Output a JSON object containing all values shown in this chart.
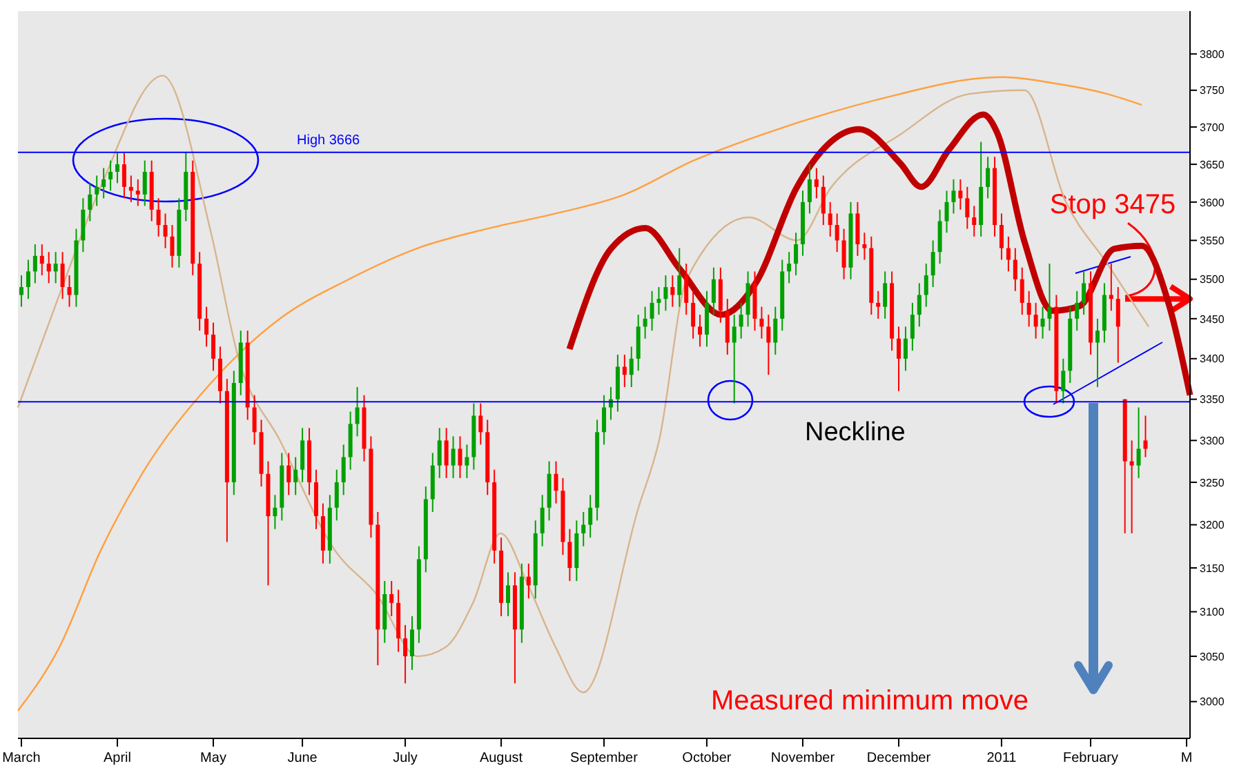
{
  "chart_data": {
    "type": "candlestick",
    "categories": [
      "March",
      null,
      null,
      null,
      null,
      null,
      null,
      null,
      null,
      null,
      null,
      null,
      null,
      null,
      "April",
      null,
      null,
      null,
      null,
      null,
      null,
      null,
      null,
      null,
      null,
      null,
      null,
      null,
      "May",
      null,
      null,
      null,
      null,
      null,
      null,
      null,
      null,
      null,
      null,
      null,
      null,
      "June",
      null,
      null,
      null,
      null,
      null,
      null,
      null,
      null,
      null,
      null,
      null,
      null,
      null,
      null,
      "July",
      null,
      null,
      null,
      null,
      null,
      null,
      null,
      null,
      null,
      null,
      null,
      null,
      null,
      "August",
      null,
      null,
      null,
      null,
      null,
      null,
      null,
      null,
      null,
      null,
      null,
      null,
      null,
      null,
      "September",
      null,
      null,
      null,
      null,
      null,
      null,
      null,
      null,
      null,
      null,
      null,
      null,
      null,
      null,
      "October",
      null,
      null,
      null,
      null,
      null,
      null,
      null,
      null,
      null,
      null,
      null,
      null,
      null,
      "November",
      null,
      null,
      null,
      null,
      null,
      null,
      null,
      null,
      null,
      null,
      null,
      null,
      null,
      "December",
      null,
      null,
      null,
      null,
      null,
      null,
      null,
      null,
      null,
      null,
      null,
      null,
      null,
      null,
      "2011",
      null,
      null,
      null,
      null,
      null,
      null,
      null,
      null,
      null,
      null,
      null,
      null,
      "February",
      null,
      null,
      null,
      null,
      null,
      null,
      null,
      null,
      null,
      null,
      null,
      null,
      null,
      "M"
    ],
    "ohlc": [
      [
        3480,
        3505,
        3465,
        3490
      ],
      [
        3490,
        3525,
        3475,
        3510
      ],
      [
        3510,
        3545,
        3495,
        3530
      ],
      [
        3530,
        3545,
        3505,
        3520
      ],
      [
        3520,
        3535,
        3495,
        3510
      ],
      [
        3510,
        3535,
        3495,
        3520
      ],
      [
        3520,
        3535,
        3475,
        3490
      ],
      [
        3490,
        3505,
        3465,
        3480
      ],
      [
        3480,
        3565,
        3465,
        3550
      ],
      [
        3550,
        3605,
        3535,
        3590
      ],
      [
        3590,
        3625,
        3575,
        3610
      ],
      [
        3610,
        3635,
        3595,
        3620
      ],
      [
        3620,
        3645,
        3605,
        3630
      ],
      [
        3630,
        3655,
        3615,
        3640
      ],
      [
        3640,
        3665,
        3625,
        3650
      ],
      [
        3650,
        3665,
        3605,
        3620
      ],
      [
        3620,
        3635,
        3600,
        3615
      ],
      [
        3615,
        3630,
        3595,
        3610
      ],
      [
        3610,
        3655,
        3595,
        3640
      ],
      [
        3640,
        3655,
        3575,
        3590
      ],
      [
        3590,
        3605,
        3555,
        3570
      ],
      [
        3570,
        3585,
        3540,
        3555
      ],
      [
        3555,
        3570,
        3515,
        3530
      ],
      [
        3530,
        3605,
        3515,
        3590
      ],
      [
        3590,
        3666,
        3575,
        3640
      ],
      [
        3640,
        3655,
        3505,
        3520
      ],
      [
        3520,
        3535,
        3435,
        3450
      ],
      [
        3450,
        3465,
        3415,
        3430
      ],
      [
        3430,
        3445,
        3385,
        3400
      ],
      [
        3400,
        3415,
        3345,
        3360
      ],
      [
        3360,
        3375,
        3180,
        3250
      ],
      [
        3250,
        3385,
        3235,
        3370
      ],
      [
        3370,
        3435,
        3355,
        3420
      ],
      [
        3420,
        3435,
        3325,
        3340
      ],
      [
        3340,
        3355,
        3295,
        3310
      ],
      [
        3310,
        3325,
        3245,
        3260
      ],
      [
        3260,
        3275,
        3130,
        3210
      ],
      [
        3210,
        3235,
        3195,
        3220
      ],
      [
        3220,
        3285,
        3205,
        3270
      ],
      [
        3270,
        3285,
        3235,
        3250
      ],
      [
        3250,
        3280,
        3235,
        3265
      ],
      [
        3265,
        3315,
        3250,
        3300
      ],
      [
        3300,
        3315,
        3235,
        3250
      ],
      [
        3250,
        3265,
        3195,
        3210
      ],
      [
        3210,
        3225,
        3155,
        3170
      ],
      [
        3170,
        3235,
        3155,
        3220
      ],
      [
        3220,
        3265,
        3205,
        3250
      ],
      [
        3250,
        3295,
        3235,
        3280
      ],
      [
        3280,
        3335,
        3265,
        3320
      ],
      [
        3320,
        3365,
        3305,
        3340
      ],
      [
        3340,
        3355,
        3275,
        3290
      ],
      [
        3290,
        3305,
        3185,
        3200
      ],
      [
        3200,
        3215,
        3040,
        3080
      ],
      [
        3080,
        3135,
        3065,
        3120
      ],
      [
        3120,
        3135,
        3095,
        3110
      ],
      [
        3110,
        3125,
        3055,
        3070
      ],
      [
        3070,
        3085,
        3020,
        3050
      ],
      [
        3050,
        3095,
        3035,
        3080
      ],
      [
        3080,
        3175,
        3065,
        3160
      ],
      [
        3160,
        3245,
        3145,
        3230
      ],
      [
        3230,
        3285,
        3215,
        3270
      ],
      [
        3270,
        3315,
        3255,
        3300
      ],
      [
        3300,
        3315,
        3255,
        3270
      ],
      [
        3270,
        3305,
        3255,
        3290
      ],
      [
        3290,
        3305,
        3255,
        3270
      ],
      [
        3270,
        3295,
        3255,
        3280
      ],
      [
        3280,
        3345,
        3265,
        3330
      ],
      [
        3330,
        3345,
        3295,
        3310
      ],
      [
        3310,
        3325,
        3235,
        3250
      ],
      [
        3250,
        3265,
        3155,
        3170
      ],
      [
        3170,
        3185,
        3095,
        3110
      ],
      [
        3110,
        3145,
        3095,
        3130
      ],
      [
        3130,
        3145,
        3020,
        3080
      ],
      [
        3080,
        3155,
        3065,
        3140
      ],
      [
        3140,
        3155,
        3115,
        3130
      ],
      [
        3130,
        3205,
        3115,
        3190
      ],
      [
        3190,
        3235,
        3175,
        3220
      ],
      [
        3220,
        3275,
        3205,
        3260
      ],
      [
        3260,
        3275,
        3225,
        3240
      ],
      [
        3240,
        3255,
        3165,
        3180
      ],
      [
        3180,
        3195,
        3135,
        3150
      ],
      [
        3150,
        3205,
        3135,
        3190
      ],
      [
        3190,
        3215,
        3175,
        3200
      ],
      [
        3200,
        3235,
        3185,
        3220
      ],
      [
        3220,
        3325,
        3205,
        3310
      ],
      [
        3310,
        3355,
        3295,
        3340
      ],
      [
        3340,
        3365,
        3325,
        3350
      ],
      [
        3350,
        3405,
        3335,
        3390
      ],
      [
        3390,
        3405,
        3365,
        3380
      ],
      [
        3380,
        3415,
        3365,
        3400
      ],
      [
        3400,
        3455,
        3385,
        3440
      ],
      [
        3440,
        3465,
        3425,
        3450
      ],
      [
        3450,
        3485,
        3435,
        3470
      ],
      [
        3470,
        3490,
        3455,
        3475
      ],
      [
        3475,
        3505,
        3460,
        3490
      ],
      [
        3490,
        3505,
        3465,
        3480
      ],
      [
        3480,
        3540,
        3465,
        3505
      ],
      [
        3505,
        3520,
        3455,
        3470
      ],
      [
        3470,
        3485,
        3425,
        3440
      ],
      [
        3440,
        3455,
        3415,
        3430
      ],
      [
        3430,
        3485,
        3415,
        3470
      ],
      [
        3470,
        3515,
        3455,
        3500
      ],
      [
        3500,
        3515,
        3445,
        3460
      ],
      [
        3460,
        3475,
        3405,
        3420
      ],
      [
        3420,
        3455,
        3345,
        3440
      ],
      [
        3440,
        3470,
        3425,
        3455
      ],
      [
        3455,
        3510,
        3440,
        3495
      ],
      [
        3495,
        3510,
        3435,
        3450
      ],
      [
        3450,
        3465,
        3425,
        3440
      ],
      [
        3440,
        3455,
        3380,
        3420
      ],
      [
        3420,
        3465,
        3405,
        3450
      ],
      [
        3450,
        3525,
        3435,
        3510
      ],
      [
        3510,
        3535,
        3495,
        3520
      ],
      [
        3520,
        3560,
        3505,
        3545
      ],
      [
        3545,
        3615,
        3530,
        3600
      ],
      [
        3600,
        3650,
        3585,
        3630
      ],
      [
        3630,
        3645,
        3605,
        3620
      ],
      [
        3620,
        3635,
        3570,
        3585
      ],
      [
        3585,
        3600,
        3555,
        3570
      ],
      [
        3570,
        3585,
        3535,
        3550
      ],
      [
        3550,
        3565,
        3500,
        3515
      ],
      [
        3515,
        3600,
        3500,
        3585
      ],
      [
        3585,
        3600,
        3530,
        3545
      ],
      [
        3545,
        3560,
        3525,
        3540
      ],
      [
        3540,
        3555,
        3455,
        3470
      ],
      [
        3470,
        3485,
        3450,
        3465
      ],
      [
        3465,
        3510,
        3450,
        3495
      ],
      [
        3495,
        3510,
        3410,
        3425
      ],
      [
        3425,
        3440,
        3360,
        3400
      ],
      [
        3400,
        3440,
        3385,
        3425
      ],
      [
        3425,
        3470,
        3410,
        3455
      ],
      [
        3455,
        3495,
        3440,
        3480
      ],
      [
        3480,
        3520,
        3465,
        3505
      ],
      [
        3505,
        3550,
        3490,
        3535
      ],
      [
        3535,
        3590,
        3520,
        3575
      ],
      [
        3575,
        3615,
        3560,
        3600
      ],
      [
        3600,
        3630,
        3585,
        3615
      ],
      [
        3615,
        3630,
        3590,
        3605
      ],
      [
        3605,
        3620,
        3565,
        3580
      ],
      [
        3580,
        3595,
        3555,
        3570
      ],
      [
        3570,
        3680,
        3555,
        3620
      ],
      [
        3620,
        3660,
        3605,
        3645
      ],
      [
        3645,
        3660,
        3555,
        3570
      ],
      [
        3570,
        3585,
        3525,
        3540
      ],
      [
        3540,
        3555,
        3510,
        3525
      ],
      [
        3525,
        3540,
        3485,
        3500
      ],
      [
        3500,
        3515,
        3455,
        3470
      ],
      [
        3470,
        3485,
        3440,
        3455
      ],
      [
        3455,
        3470,
        3425,
        3440
      ],
      [
        3440,
        3465,
        3425,
        3450
      ],
      [
        3450,
        3520,
        3435,
        3465
      ],
      [
        3465,
        3480,
        3345,
        3360
      ],
      [
        3360,
        3400,
        3345,
        3385
      ],
      [
        3385,
        3465,
        3370,
        3450
      ],
      [
        3450,
        3485,
        3435,
        3470
      ],
      [
        3470,
        3510,
        3455,
        3495
      ],
      [
        3495,
        3510,
        3405,
        3420
      ],
      [
        3420,
        3450,
        3365,
        3435
      ],
      [
        3435,
        3495,
        3420,
        3480
      ],
      [
        3480,
        3520,
        3460,
        3475
      ],
      [
        3475,
        3490,
        3395,
        3440
      ],
      [
        3350,
        3350,
        3190,
        3275
      ],
      [
        3275,
        3300,
        3190,
        3270
      ],
      [
        3270,
        3340,
        3255,
        3290
      ],
      [
        3300,
        3330,
        3280,
        3290
      ],
      null,
      null,
      null,
      null,
      null,
      null
    ],
    "colors": [
      "#00a000",
      "#00a000",
      "#00a000",
      "#ff0000",
      "#ff0000",
      "#00a000",
      "#ff0000",
      "#ff0000",
      "#00a000",
      "#00a000",
      "#00a000",
      "#00a000",
      "#00a000",
      "#00a000",
      "#00a000",
      "#ff0000",
      "#ff0000",
      "#ff0000",
      "#00a000",
      "#ff0000",
      "#ff0000",
      "#ff0000",
      "#ff0000",
      "#00a000",
      "#00a000",
      "#ff0000",
      "#ff0000",
      "#ff0000",
      "#ff0000",
      "#ff0000",
      "#ff0000",
      "#00a000",
      "#00a000",
      "#ff0000",
      "#ff0000",
      "#ff0000",
      "#ff0000",
      "#00a000",
      "#00a000",
      "#ff0000",
      "#00a000",
      "#00a000",
      "#ff0000",
      "#ff0000",
      "#ff0000",
      "#00a000",
      "#00a000",
      "#00a000",
      "#00a000",
      "#00a000",
      "#ff0000",
      "#ff0000",
      "#ff0000",
      "#00a000",
      "#ff0000",
      "#ff0000",
      "#ff0000",
      "#00a000",
      "#00a000",
      "#00a000",
      "#00a000",
      "#00a000",
      "#ff0000",
      "#00a000",
      "#ff0000",
      "#00a000",
      "#00a000",
      "#ff0000",
      "#ff0000",
      "#ff0000",
      "#ff0000",
      "#00a000",
      "#ff0000",
      "#00a000",
      "#ff0000",
      "#00a000",
      "#00a000",
      "#00a000",
      "#ff0000",
      "#ff0000",
      "#ff0000",
      "#00a000",
      "#00a000",
      "#00a000",
      "#00a000",
      "#00a000",
      "#00a000",
      "#00a000",
      "#ff0000",
      "#00a000",
      "#00a000",
      "#00a000",
      "#00a000",
      "#00a000",
      "#00a000",
      "#ff0000",
      "#00a000",
      "#ff0000",
      "#ff0000",
      "#ff0000",
      "#00a000",
      "#00a000",
      "#ff0000",
      "#ff0000",
      "#00a000",
      "#00a000",
      "#00a000",
      "#ff0000",
      "#ff0000",
      "#ff0000",
      "#00a000",
      "#00a000",
      "#00a000",
      "#00a000",
      "#00a000",
      "#00a000",
      "#ff0000",
      "#ff0000",
      "#ff0000",
      "#ff0000",
      "#ff0000",
      "#00a000",
      "#ff0000",
      "#ff0000",
      "#ff0000",
      "#ff0000",
      "#00a000",
      "#ff0000",
      "#ff0000",
      "#00a000",
      "#00a000",
      "#00a000",
      "#00a000",
      "#00a000",
      "#00a000",
      "#00a000",
      "#00a000",
      "#ff0000",
      "#ff0000",
      "#ff0000",
      "#00a000",
      "#00a000",
      "#ff0000",
      "#ff0000",
      "#ff0000",
      "#ff0000",
      "#ff0000",
      "#ff0000",
      "#ff0000",
      "#00a000",
      "#00a000",
      "#ff0000",
      "#00a000",
      "#00a000",
      "#00a000",
      "#00a000",
      "#ff0000",
      "#00a000",
      "#00a000",
      "#ff0000",
      "#ff0000",
      "#ff0000",
      "#ff0000",
      "#00a000",
      "#ff0000",
      null,
      null,
      null,
      null,
      null,
      null
    ],
    "series": [
      {
        "type": "line",
        "color": "#d8b48c",
        "values": [
          3340,
          null,
          null,
          null,
          null,
          null,
          3480,
          null,
          null,
          null,
          null,
          null,
          3620,
          null,
          null,
          null,
          null,
          null,
          null,
          null,
          null,
          3770,
          null,
          null,
          null,
          null,
          null,
          null,
          3560,
          null,
          null,
          null,
          3400,
          null,
          null,
          null,
          null,
          null,
          3300,
          null,
          null,
          null,
          null,
          null,
          null,
          null,
          3170,
          null,
          null,
          null,
          null,
          null,
          3120,
          null,
          null,
          null,
          null,
          null,
          3050,
          null,
          null,
          null,
          3060,
          null,
          null,
          null,
          3110,
          null,
          null,
          null,
          3190,
          null,
          null,
          null,
          3130,
          null,
          null,
          null,
          3060,
          null,
          null,
          null,
          3010,
          null,
          null,
          null,
          null,
          null,
          null,
          null,
          3220,
          null,
          null,
          3300,
          null,
          null,
          null,
          3500,
          null,
          null,
          null,
          null,
          null,
          null,
          null,
          null,
          3580,
          null,
          null,
          null,
          null,
          null,
          null,
          3550,
          null,
          null,
          null,
          null,
          3620,
          null,
          null,
          null,
          null,
          null,
          null,
          null,
          null,
          null,
          3690,
          null,
          null,
          null,
          null,
          null,
          null,
          null,
          null,
          null,
          3745,
          null,
          null,
          null,
          null,
          null,
          null,
          null,
          3750,
          null,
          null,
          null,
          null,
          null,
          3600,
          null,
          null,
          null,
          null,
          null,
          3520,
          null,
          null,
          null,
          null,
          null,
          3440,
          null,
          null,
          null,
          null,
          null,
          null
        ]
      },
      {
        "type": "line",
        "color": "#ffa040",
        "values": [
          2990,
          null,
          null,
          null,
          null,
          null,
          3060,
          null,
          null,
          null,
          null,
          null,
          3170,
          null,
          null,
          null,
          null,
          null,
          3260,
          null,
          null,
          null,
          null,
          null,
          null,
          null,
          null,
          null,
          3370,
          null,
          null,
          null,
          null,
          null,
          null,
          null,
          null,
          null,
          3450,
          null,
          null,
          null,
          null,
          null,
          null,
          null,
          null,
          null,
          3500,
          null,
          null,
          null,
          null,
          null,
          null,
          null,
          null,
          null,
          3540,
          null,
          null,
          null,
          null,
          null,
          null,
          null,
          null,
          null,
          3565,
          null,
          null,
          null,
          null,
          null,
          null,
          null,
          null,
          null,
          3585,
          null,
          null,
          null,
          null,
          null,
          null,
          null,
          null,
          null,
          3610,
          null,
          null,
          null,
          null,
          null,
          null,
          null,
          null,
          null,
          3655,
          null,
          null,
          null,
          null,
          null,
          null,
          null,
          null,
          null,
          3690,
          null,
          null,
          null,
          null,
          null,
          null,
          null,
          null,
          null,
          3720,
          null,
          null,
          null,
          null,
          null,
          null,
          null,
          null,
          null,
          3745,
          null,
          null,
          null,
          null,
          null,
          null,
          null,
          null,
          null,
          3765,
          null,
          null,
          null,
          null,
          3768,
          null,
          null,
          null,
          null,
          null,
          null,
          3760,
          null,
          null,
          null,
          null,
          null,
          null,
          null,
          3745,
          null,
          null,
          null,
          null,
          3730,
          null,
          null,
          null,
          null,
          null,
          null,
          null
        ]
      },
      {
        "type": "line",
        "color": "#c00000",
        "values": [
          null,
          null,
          null,
          null,
          null,
          null,
          null,
          null,
          null,
          null,
          null,
          null,
          null,
          null,
          null,
          null,
          null,
          null,
          null,
          null,
          null,
          null,
          null,
          null,
          null,
          null,
          null,
          null,
          null,
          null,
          null,
          null,
          null,
          null,
          null,
          null,
          null,
          null,
          null,
          null,
          null,
          null,
          null,
          null,
          null,
          null,
          null,
          null,
          null,
          null,
          null,
          null,
          null,
          null,
          null,
          null,
          null,
          null,
          null,
          null,
          null,
          null,
          null,
          null,
          null,
          null,
          null,
          null,
          null,
          null,
          null,
          null,
          null,
          null,
          null,
          null,
          null,
          null,
          null,
          null,
          3412,
          null,
          null,
          null,
          null,
          null,
          3539,
          null,
          null,
          null,
          null,
          3566,
          null,
          null,
          null,
          null,
          3513,
          null,
          null,
          null,
          null,
          null,
          3455,
          null,
          null,
          null,
          null,
          3495,
          null,
          null,
          null,
          null,
          null,
          3620,
          null,
          null,
          null,
          null,
          null,
          null,
          null,
          null,
          3697,
          null,
          null,
          null,
          null,
          null,
          3651,
          null,
          null,
          3620,
          null,
          null,
          null,
          3669,
          null,
          null,
          null,
          null,
          3717,
          null,
          3693,
          null,
          null,
          null,
          3548,
          null,
          null,
          null,
          3460,
          null,
          null,
          null,
          3466,
          null,
          null,
          null,
          null,
          3539,
          null,
          null,
          null,
          3543,
          null,
          null,
          null,
          3466,
          null,
          null,
          3355
        ]
      }
    ],
    "ylim": [
      2960,
      3860
    ],
    "yticks": [
      3000,
      3050,
      3100,
      3150,
      3200,
      3250,
      3300,
      3350,
      3400,
      3450,
      3500,
      3550,
      3600,
      3650,
      3700,
      3750,
      3800
    ],
    "log": true,
    "grid": false,
    "ref_lines": [
      {
        "axis": "y",
        "value": 3666,
        "label": "High 3666",
        "color": "#0000ff"
      },
      {
        "axis": "y",
        "value": 3347,
        "label": "Neckline",
        "color": "#0000ff"
      }
    ],
    "annotations": [
      {
        "text": "Stop 3475",
        "y": 3475
      },
      "Measured minimum move"
    ]
  }
}
